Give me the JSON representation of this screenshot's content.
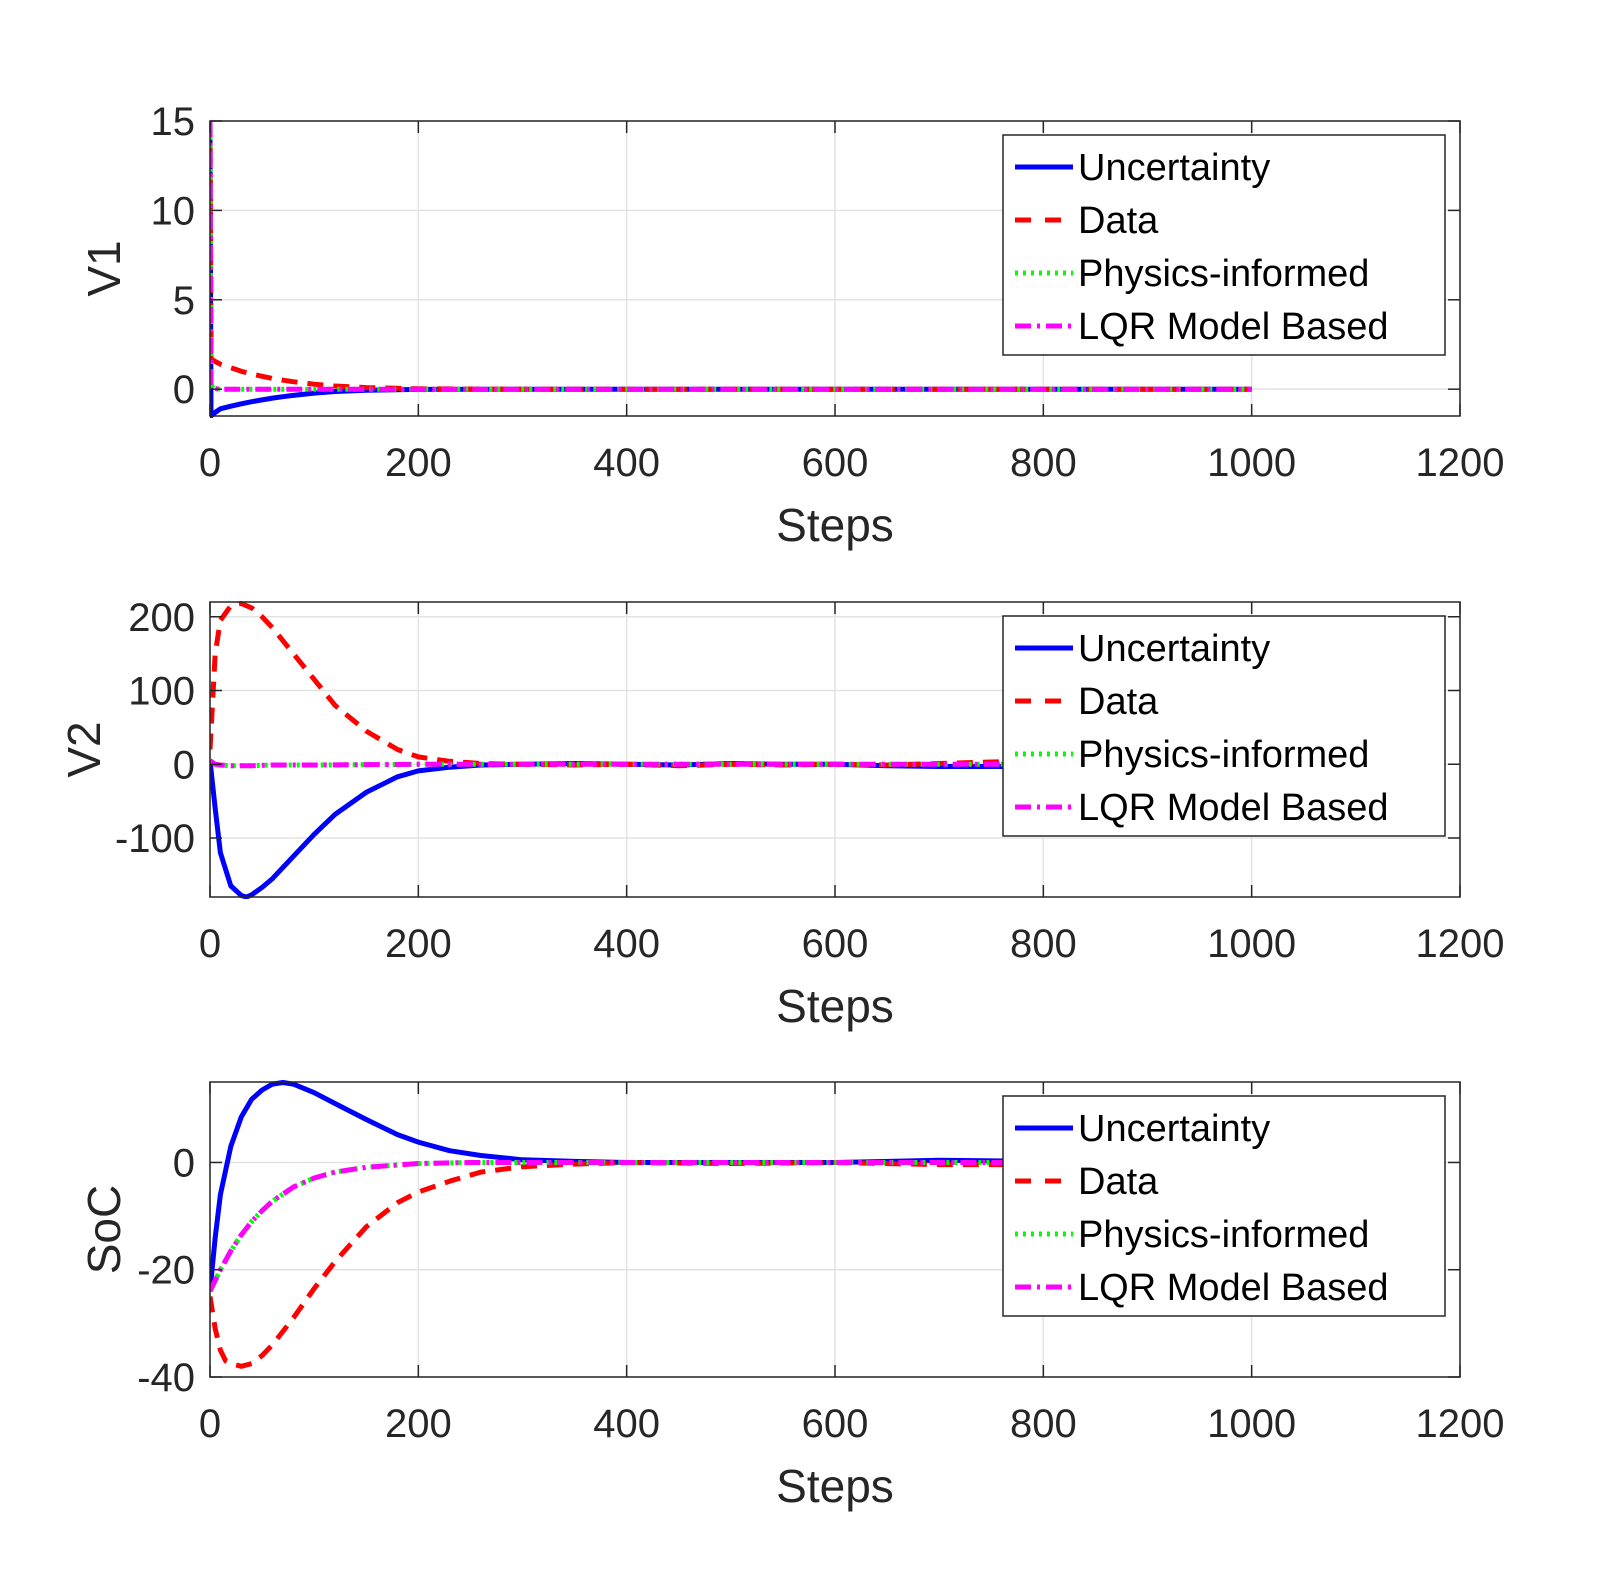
{
  "chart_data": [
    {
      "type": "line",
      "xlabel": "Steps",
      "ylabel": "V1",
      "xlim": [
        0,
        1200
      ],
      "ylim": [
        -1.5,
        15
      ],
      "xticks": [
        0,
        200,
        400,
        600,
        800,
        1000,
        1200
      ],
      "yticks": [
        0,
        5,
        10,
        15
      ],
      "grid": true,
      "legend_position": "top-right",
      "series": [
        {
          "name": "Uncertainty",
          "color": "#0000ff",
          "style": "solid",
          "x": [
            0,
            1,
            5,
            10,
            20,
            30,
            40,
            50,
            60,
            70,
            80,
            100,
            120,
            150,
            200,
            300,
            500,
            700,
            900,
            1000
          ],
          "y": [
            14,
            -1.5,
            -1.3,
            -1.1,
            -0.95,
            -0.82,
            -0.7,
            -0.6,
            -0.5,
            -0.42,
            -0.35,
            -0.22,
            -0.13,
            -0.06,
            -0.01,
            0,
            0,
            0,
            0,
            0
          ]
        },
        {
          "name": "Data",
          "color": "#ff0000",
          "style": "dashed",
          "x": [
            0,
            1,
            5,
            10,
            20,
            30,
            40,
            50,
            60,
            70,
            80,
            100,
            120,
            150,
            200,
            300,
            500,
            700,
            900,
            1000
          ],
          "y": [
            15,
            1.7,
            1.55,
            1.4,
            1.2,
            1.0,
            0.85,
            0.72,
            0.6,
            0.5,
            0.42,
            0.28,
            0.18,
            0.09,
            0.02,
            0,
            0,
            0,
            0,
            0
          ]
        },
        {
          "name": "Physics-informed",
          "color": "#00ff00",
          "style": "dotted",
          "x": [
            0,
            1,
            3,
            10,
            50,
            200,
            500,
            800,
            1000
          ],
          "y": [
            15,
            0.3,
            0.05,
            0,
            0,
            0,
            0,
            0,
            0
          ]
        },
        {
          "name": "LQR Model Based",
          "color": "#ff00ff",
          "style": "dashdot",
          "x": [
            0,
            1,
            3,
            10,
            50,
            200,
            500,
            800,
            1000
          ],
          "y": [
            15,
            0.3,
            0.05,
            0,
            0,
            0,
            0,
            0,
            0
          ]
        }
      ]
    },
    {
      "type": "line",
      "xlabel": "Steps",
      "ylabel": "V2",
      "xlim": [
        0,
        1200
      ],
      "ylim": [
        -180,
        220
      ],
      "xticks": [
        0,
        200,
        400,
        600,
        800,
        1000,
        1200
      ],
      "yticks": [
        -100,
        0,
        100,
        200
      ],
      "grid": true,
      "legend_position": "top-right",
      "series": [
        {
          "name": "Uncertainty",
          "color": "#0000ff",
          "style": "solid",
          "x": [
            0,
            5,
            10,
            20,
            30,
            35,
            40,
            50,
            60,
            80,
            100,
            120,
            150,
            180,
            200,
            230,
            260,
            300,
            350,
            400,
            450,
            500,
            550,
            600,
            650,
            700,
            750,
            800,
            850,
            900,
            1000
          ],
          "y": [
            5,
            -60,
            -120,
            -165,
            -178,
            -180,
            -177,
            -167,
            -155,
            -125,
            -95,
            -68,
            -38,
            -17,
            -9,
            -4,
            -1,
            0,
            1,
            0,
            -1,
            1,
            0,
            0,
            -2,
            -3,
            -3,
            -3,
            -3,
            -3,
            -3
          ]
        },
        {
          "name": "Data",
          "color": "#ff0000",
          "style": "dashed",
          "x": [
            0,
            5,
            10,
            20,
            30,
            40,
            50,
            60,
            80,
            100,
            120,
            150,
            180,
            200,
            230,
            260,
            300,
            350,
            400,
            450,
            500,
            550,
            600,
            650,
            700,
            750,
            800,
            850,
            900,
            1000
          ],
          "y": [
            20,
            150,
            195,
            215,
            218,
            212,
            200,
            185,
            150,
            115,
            80,
            45,
            20,
            10,
            4,
            1,
            0,
            -1,
            0,
            -2,
            0,
            -1,
            0,
            -1,
            1,
            3,
            4,
            3,
            2,
            2
          ]
        },
        {
          "name": "Physics-informed",
          "color": "#00ff00",
          "style": "dotted",
          "x": [
            0,
            5,
            10,
            20,
            40,
            60,
            100,
            200,
            400,
            600,
            800,
            1000
          ],
          "y": [
            5,
            0,
            -1,
            -2,
            -2,
            -1,
            -1,
            0,
            0,
            0,
            0,
            0
          ]
        },
        {
          "name": "LQR Model Based",
          "color": "#ff00ff",
          "style": "dashdot",
          "x": [
            0,
            5,
            10,
            20,
            40,
            60,
            100,
            200,
            400,
            600,
            800,
            1000
          ],
          "y": [
            5,
            0,
            -1,
            -2,
            -2,
            -1,
            -1,
            0,
            0,
            0,
            0,
            0
          ]
        }
      ]
    },
    {
      "type": "line",
      "xlabel": "Steps",
      "ylabel": "SoC",
      "xlim": [
        0,
        1200
      ],
      "ylim": [
        -40,
        15
      ],
      "xticks": [
        0,
        200,
        400,
        600,
        800,
        1000,
        1200
      ],
      "yticks": [
        -40,
        -20,
        0
      ],
      "grid": true,
      "legend_position": "top-right",
      "series": [
        {
          "name": "Uncertainty",
          "color": "#0000ff",
          "style": "solid",
          "x": [
            0,
            5,
            10,
            20,
            30,
            40,
            50,
            60,
            70,
            80,
            100,
            120,
            150,
            180,
            200,
            230,
            260,
            300,
            350,
            400,
            500,
            600,
            700,
            800,
            900,
            1000
          ],
          "y": [
            -24,
            -14,
            -6,
            3,
            8.5,
            11.8,
            13.5,
            14.6,
            14.9,
            14.6,
            13,
            11,
            8,
            5.2,
            3.8,
            2.2,
            1.3,
            0.5,
            0.2,
            0,
            0,
            0,
            0.4,
            0.2,
            0.2,
            0.2
          ]
        },
        {
          "name": "Data",
          "color": "#ff0000",
          "style": "dashed",
          "x": [
            0,
            5,
            10,
            15,
            20,
            30,
            40,
            50,
            60,
            80,
            100,
            120,
            150,
            180,
            200,
            230,
            260,
            300,
            350,
            400,
            500,
            600,
            700,
            800,
            900,
            1000
          ],
          "y": [
            -25,
            -31,
            -35,
            -37,
            -37.5,
            -38,
            -37.5,
            -36,
            -34,
            -29,
            -23.5,
            -18.5,
            -12,
            -7.5,
            -5.5,
            -3.5,
            -1.8,
            -0.8,
            -0.3,
            0,
            -0.2,
            0,
            -0.4,
            -0.4,
            -0.3,
            -0.3
          ]
        },
        {
          "name": "Physics-informed",
          "color": "#00ff00",
          "style": "dotted",
          "x": [
            0,
            10,
            20,
            30,
            40,
            50,
            60,
            80,
            100,
            120,
            150,
            200,
            250,
            300,
            400,
            600,
            800,
            1000
          ],
          "y": [
            -24,
            -20,
            -16.5,
            -13.5,
            -11,
            -9,
            -7.2,
            -4.6,
            -2.9,
            -1.8,
            -0.9,
            -0.2,
            0,
            0,
            0,
            0,
            0,
            0
          ]
        },
        {
          "name": "LQR Model Based",
          "color": "#ff00ff",
          "style": "dashdot",
          "x": [
            0,
            10,
            20,
            30,
            40,
            50,
            60,
            80,
            100,
            120,
            150,
            200,
            250,
            300,
            400,
            600,
            800,
            1000
          ],
          "y": [
            -24,
            -20,
            -16.5,
            -13.5,
            -11,
            -9,
            -7.2,
            -4.6,
            -2.9,
            -1.8,
            -0.9,
            -0.2,
            0,
            0,
            0,
            0,
            0,
            0
          ]
        }
      ]
    }
  ]
}
